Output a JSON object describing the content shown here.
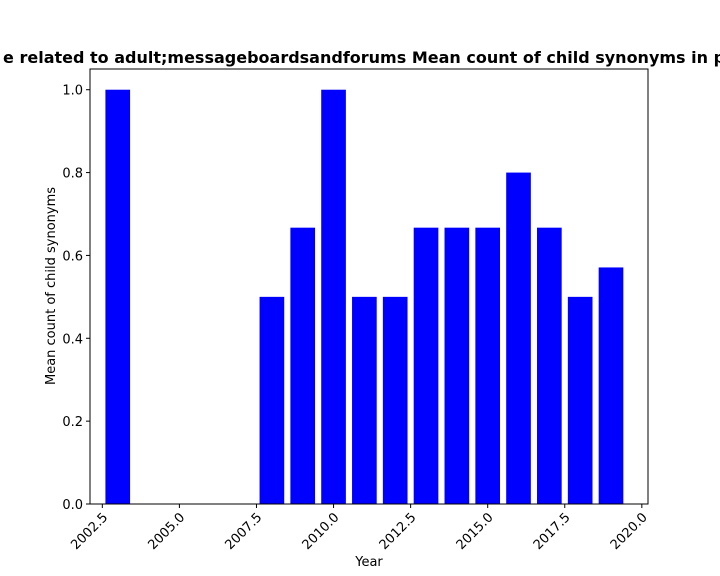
{
  "chart_data": {
    "type": "bar",
    "title": "e related to adult;messageboardsandforums Mean count of child synonyms in pr",
    "xlabel": "Year",
    "ylabel": "Mean count of child synonyms",
    "x": [
      2003,
      2008,
      2009,
      2010,
      2011,
      2012,
      2013,
      2014,
      2015,
      2016,
      2017,
      2018,
      2019
    ],
    "values": [
      1.0,
      0.5,
      0.667,
      1.0,
      0.5,
      0.5,
      0.667,
      0.667,
      0.667,
      0.8,
      0.667,
      0.5,
      0.571
    ],
    "xlim": [
      2002.1,
      2020.2
    ],
    "ylim": [
      0,
      1.05
    ],
    "xticks": [
      "2002.5",
      "2005.0",
      "2007.5",
      "2010.0",
      "2012.5",
      "2015.0",
      "2017.5",
      "2020.0"
    ],
    "xtick_values": [
      2002.5,
      2005.0,
      2007.5,
      2010.0,
      2012.5,
      2015.0,
      2017.5,
      2020.0
    ],
    "yticks": [
      "0.0",
      "0.2",
      "0.4",
      "0.6",
      "0.8",
      "1.0"
    ],
    "ytick_values": [
      0.0,
      0.2,
      0.4,
      0.6,
      0.8,
      1.0
    ],
    "bar_color": "#0000ff",
    "grid": false,
    "legend": "none"
  }
}
